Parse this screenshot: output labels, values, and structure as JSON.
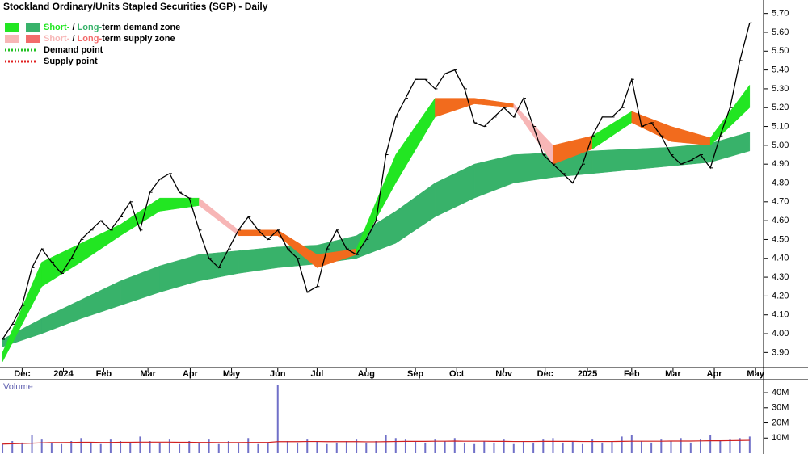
{
  "chart_data": [
    {
      "type": "line",
      "title": "Stockland Ordinary/Units Stapled Securities (SGP) - Daily",
      "legend": [
        {
          "texts": [
            "Short-",
            " / ",
            "Long-",
            "term demand zone"
          ],
          "colors": [
            "#22e622",
            "#000000",
            "#38b26a",
            "#000000"
          ],
          "swatches": [
            "#22e622",
            "#38b26a"
          ],
          "style": "box"
        },
        {
          "texts": [
            "Short-",
            " / ",
            "Long-",
            "term supply zone"
          ],
          "colors": [
            "#f7b6b6",
            "#000000",
            "#f26b6b",
            "#000000"
          ],
          "swatches": [
            "#f7b6b6",
            "#f26b6b"
          ],
          "style": "box"
        },
        {
          "texts": [
            "Demand point"
          ],
          "colors": [
            "#000000"
          ],
          "swatches": [
            "#22c022"
          ],
          "style": "dots"
        },
        {
          "texts": [
            "Supply point"
          ],
          "colors": [
            "#000000"
          ],
          "swatches": [
            "#e02020"
          ],
          "style": "dots"
        }
      ],
      "x": [
        0,
        1,
        2,
        3,
        4,
        5,
        6,
        7,
        8,
        9,
        10,
        11,
        12,
        13,
        14,
        15,
        16,
        17,
        18,
        19,
        20,
        21,
        22,
        23,
        24,
        25,
        26,
        27,
        28,
        29,
        30,
        31,
        32,
        33,
        34,
        35,
        36,
        37,
        38,
        39,
        40,
        41,
        42,
        43,
        44,
        45,
        46,
        47,
        48,
        49,
        50,
        51,
        52,
        53,
        54,
        55,
        56,
        57,
        58,
        59,
        60,
        61,
        62,
        63,
        64,
        65,
        66,
        67,
        68,
        69,
        70,
        71,
        72,
        73,
        74,
        75,
        76
      ],
      "xlim": [
        -0.25,
        77
      ],
      "xticks": [
        {
          "value": 2,
          "label": "Dec"
        },
        {
          "value": 6.2,
          "label": "2024"
        },
        {
          "value": 10.3,
          "label": "Feb"
        },
        {
          "value": 14.8,
          "label": "Mar"
        },
        {
          "value": 19.1,
          "label": "Apr"
        },
        {
          "value": 23.3,
          "label": "May"
        },
        {
          "value": 28,
          "label": "Jun"
        },
        {
          "value": 32,
          "label": "Jul"
        },
        {
          "value": 37,
          "label": "Aug"
        },
        {
          "value": 42,
          "label": "Sep"
        },
        {
          "value": 46.2,
          "label": "Oct"
        },
        {
          "value": 51,
          "label": "Nov"
        },
        {
          "value": 55.2,
          "label": "Dec"
        },
        {
          "value": 59.5,
          "label": "2025"
        },
        {
          "value": 64,
          "label": "Feb"
        },
        {
          "value": 68.2,
          "label": "Mar"
        },
        {
          "value": 72.4,
          "label": "Apr"
        },
        {
          "value": 76.6,
          "label": "May"
        }
      ],
      "ylim": [
        3.82,
        5.75
      ],
      "yticks": [
        {
          "value": 3.9,
          "label": "3.90"
        },
        {
          "value": 4.0,
          "label": "4.00"
        },
        {
          "value": 4.1,
          "label": "4.10"
        },
        {
          "value": 4.2,
          "label": "4.20"
        },
        {
          "value": 4.3,
          "label": "4.30"
        },
        {
          "value": 4.4,
          "label": "4.40"
        },
        {
          "value": 4.5,
          "label": "4.50"
        },
        {
          "value": 4.6,
          "label": "4.60"
        },
        {
          "value": 4.7,
          "label": "4.70"
        },
        {
          "value": 4.8,
          "label": "4.80"
        },
        {
          "value": 4.9,
          "label": "4.90"
        },
        {
          "value": 5.0,
          "label": "5.00"
        },
        {
          "value": 5.1,
          "label": "5.10"
        },
        {
          "value": 5.2,
          "label": "5.20"
        },
        {
          "value": 5.3,
          "label": "5.30"
        },
        {
          "value": 5.4,
          "label": "5.40"
        },
        {
          "value": 5.5,
          "label": "5.50"
        },
        {
          "value": 5.6,
          "label": "5.60"
        },
        {
          "value": 5.7,
          "label": "5.70"
        }
      ],
      "series": [
        {
          "name": "Close",
          "color": "#000000",
          "values": [
            3.97,
            4.05,
            4.15,
            4.35,
            4.45,
            4.38,
            4.32,
            4.4,
            4.5,
            4.55,
            4.6,
            4.55,
            4.62,
            4.7,
            4.55,
            4.75,
            4.82,
            4.85,
            4.75,
            4.72,
            4.55,
            4.4,
            4.35,
            4.45,
            4.55,
            4.62,
            4.55,
            4.5,
            4.55,
            4.45,
            4.4,
            4.22,
            4.25,
            4.45,
            4.55,
            4.45,
            4.42,
            4.5,
            4.6,
            4.95,
            5.15,
            5.25,
            5.35,
            5.35,
            5.3,
            5.38,
            5.4,
            5.3,
            5.12,
            5.1,
            5.15,
            5.2,
            5.15,
            5.25,
            5.1,
            4.95,
            4.9,
            4.85,
            4.8,
            4.9,
            5.05,
            5.15,
            5.15,
            5.2,
            5.35,
            5.1,
            5.12,
            5.05,
            4.95,
            4.9,
            4.92,
            4.95,
            4.88,
            5.05,
            5.2,
            5.45,
            5.65
          ]
        }
      ],
      "bands": [
        {
          "x": [
            0,
            4,
            8,
            12,
            16,
            20,
            24,
            28,
            32,
            36,
            40,
            44,
            48,
            52,
            56,
            60,
            64,
            68,
            72,
            76
          ],
          "lower": [
            3.93,
            4.0,
            4.08,
            4.15,
            4.22,
            4.28,
            4.32,
            4.35,
            4.37,
            4.4,
            4.48,
            4.62,
            4.72,
            4.8,
            4.83,
            4.85,
            4.87,
            4.89,
            4.91,
            4.97
          ],
          "upper": [
            3.97,
            4.08,
            4.18,
            4.28,
            4.36,
            4.42,
            4.44,
            4.46,
            4.47,
            4.52,
            4.65,
            4.8,
            4.9,
            4.95,
            4.96,
            4.97,
            4.98,
            4.99,
            5.01,
            5.07
          ],
          "segment_colors": [
            "#38b26a",
            "#38b26a",
            "#38b26a",
            "#38b26a",
            "#38b26a",
            "#38b26a",
            "#38b26a",
            "#38b26a",
            "#38b26a",
            "#38b26a",
            "#38b26a",
            "#38b26a",
            "#38b26a",
            "#38b26a",
            "#38b26a",
            "#38b26a",
            "#38b26a",
            "#38b26a",
            "#38b26a"
          ]
        },
        {
          "x": [
            0,
            4,
            8,
            12,
            16,
            20,
            24,
            28,
            32,
            36,
            40,
            44,
            48,
            52,
            56,
            60,
            64,
            68,
            72,
            76
          ],
          "lower": [
            3.85,
            4.25,
            4.38,
            4.52,
            4.65,
            4.68,
            4.52,
            4.52,
            4.35,
            4.42,
            4.8,
            5.15,
            5.22,
            5.2,
            4.9,
            4.98,
            5.12,
            5.02,
            5.0,
            5.2
          ],
          "upper": [
            3.9,
            4.38,
            4.48,
            4.58,
            4.72,
            4.72,
            4.55,
            4.55,
            4.42,
            4.45,
            4.95,
            5.25,
            5.25,
            5.22,
            5.0,
            5.05,
            5.18,
            5.1,
            5.04,
            5.32
          ],
          "segment_colors": [
            "#22e622",
            "#22e622",
            "#22e622",
            "#22e622",
            "#22e622",
            "#f7b6b6",
            "#f26b1d",
            "#f26b1d",
            "#f26b1d",
            "#22e622",
            "#22e622",
            "#f26b1d",
            "#f26b1d",
            "#f7b6b6",
            "#f26b1d",
            "#22e622",
            "#f26b1d",
            "#f26b1d",
            "#22e622"
          ]
        }
      ]
    },
    {
      "type": "bar",
      "title": "Volume",
      "ylim": [
        0,
        47.5
      ],
      "yticks": [
        {
          "value": 10,
          "label": "10M"
        },
        {
          "value": 20,
          "label": "20M"
        },
        {
          "value": 30,
          "label": "30M"
        },
        {
          "value": 40,
          "label": "40M"
        }
      ],
      "color": "#7070c8",
      "values": [
        6,
        8,
        7,
        12,
        9,
        7,
        6,
        8,
        10,
        7,
        6,
        9,
        8,
        7,
        11,
        8,
        7,
        9,
        6,
        8,
        7,
        9,
        6,
        8,
        7,
        10,
        6,
        7,
        45,
        8,
        7,
        9,
        8,
        6,
        7,
        8,
        9,
        7,
        8,
        12,
        10,
        9,
        8,
        7,
        9,
        8,
        10,
        7,
        6,
        8,
        7,
        9,
        6,
        8,
        7,
        9,
        10,
        7,
        8,
        6,
        9,
        7,
        8,
        11,
        12,
        8,
        7,
        9,
        8,
        10,
        7,
        9,
        12,
        8,
        9,
        10,
        11
      ],
      "average": {
        "color": "#d02020",
        "values": [
          6,
          6.2,
          6.4,
          6.6,
          6.8,
          7,
          7,
          7.1,
          7.2,
          7.2,
          7.1,
          7.1,
          7.2,
          7.2,
          7.3,
          7.3,
          7.3,
          7.3,
          7.2,
          7.2,
          7.1,
          7.1,
          7,
          7,
          7,
          7.1,
          7.1,
          7.1,
          7.6,
          7.6,
          7.6,
          7.7,
          7.7,
          7.6,
          7.6,
          7.6,
          7.6,
          7.5,
          7.5,
          7.6,
          7.7,
          7.8,
          7.8,
          7.8,
          7.9,
          7.9,
          8,
          7.9,
          7.9,
          7.9,
          7.8,
          7.8,
          7.7,
          7.7,
          7.7,
          7.8,
          7.8,
          7.8,
          7.8,
          7.7,
          7.7,
          7.7,
          7.7,
          7.8,
          7.9,
          7.9,
          7.9,
          7.9,
          8,
          8,
          8,
          8.1,
          8.2,
          8.2,
          8.3,
          8.4,
          8.5
        ]
      }
    }
  ]
}
